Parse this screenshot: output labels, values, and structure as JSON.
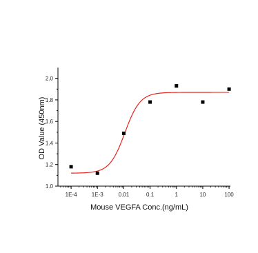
{
  "chart_data": {
    "type": "scatter",
    "xlabel": "Mouse VEGFA Conc.(ng/mL)",
    "ylabel": "OD Value (450nm)",
    "x_scale": "log",
    "xlim": [
      0.0001,
      100
    ],
    "ylim": [
      1.0,
      2.1
    ],
    "x_ticks": [
      {
        "value": 0.0001,
        "label": "1E-4"
      },
      {
        "value": 0.001,
        "label": "1E-3"
      },
      {
        "value": 0.01,
        "label": "0.01"
      },
      {
        "value": 0.1,
        "label": "0.1"
      },
      {
        "value": 1,
        "label": "1"
      },
      {
        "value": 10,
        "label": "10"
      },
      {
        "value": 100,
        "label": "100"
      }
    ],
    "y_ticks": [
      {
        "value": 1.0,
        "label": "1.0"
      },
      {
        "value": 1.2,
        "label": "1.2"
      },
      {
        "value": 1.4,
        "label": "1.4"
      },
      {
        "value": 1.6,
        "label": "1.6"
      },
      {
        "value": 1.8,
        "label": "1.8"
      },
      {
        "value": 2.0,
        "label": "2.0"
      }
    ],
    "points": [
      {
        "x": 0.0001,
        "y": 1.18
      },
      {
        "x": 0.001,
        "y": 1.12
      },
      {
        "x": 0.01,
        "y": 1.49
      },
      {
        "x": 0.1,
        "y": 1.78
      },
      {
        "x": 1,
        "y": 1.93
      },
      {
        "x": 10,
        "y": 1.78
      },
      {
        "x": 100,
        "y": 1.9
      }
    ],
    "fit_curve": {
      "model": "4PL",
      "bottom": 1.12,
      "top": 1.87,
      "ec50": 0.011,
      "hill": 1.5
    },
    "grid": false,
    "colors": {
      "points": "#000000",
      "curve": "#e8221b",
      "axes": "#000000"
    }
  }
}
